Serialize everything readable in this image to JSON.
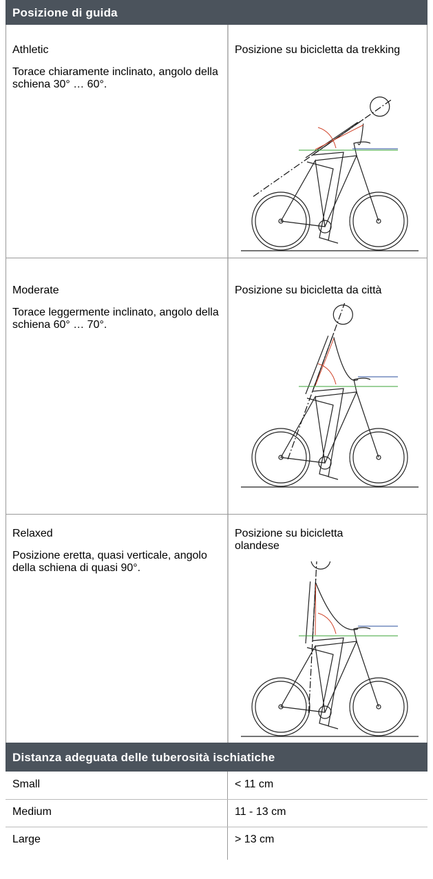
{
  "header": {
    "title": "Posizione di guida"
  },
  "positions": [
    {
      "name": "Athletic",
      "description": "Torace chiaramente inclinato, angolo della schiena 30° … 60°.",
      "caption": "Posizione su bicicletta da trekking"
    },
    {
      "name": "Moderate",
      "description": "Torace leggermente inclinato, angolo della schiena 60° … 70°.",
      "caption": "Posizione su bicicletta da città"
    },
    {
      "name": "Relaxed",
      "description": "Posizione eretta, quasi verticale, angolo della schiena di quasi 90°.",
      "caption": "Posizione su bicicletta olandese"
    }
  ],
  "distance": {
    "title": "Distanza adeguata delle tuberosità ischiatiche",
    "rows": [
      [
        "Small",
        "< 11 cm"
      ],
      [
        "Medium",
        "11 - 13 cm"
      ],
      [
        "Large",
        "> 13 cm"
      ]
    ]
  }
}
